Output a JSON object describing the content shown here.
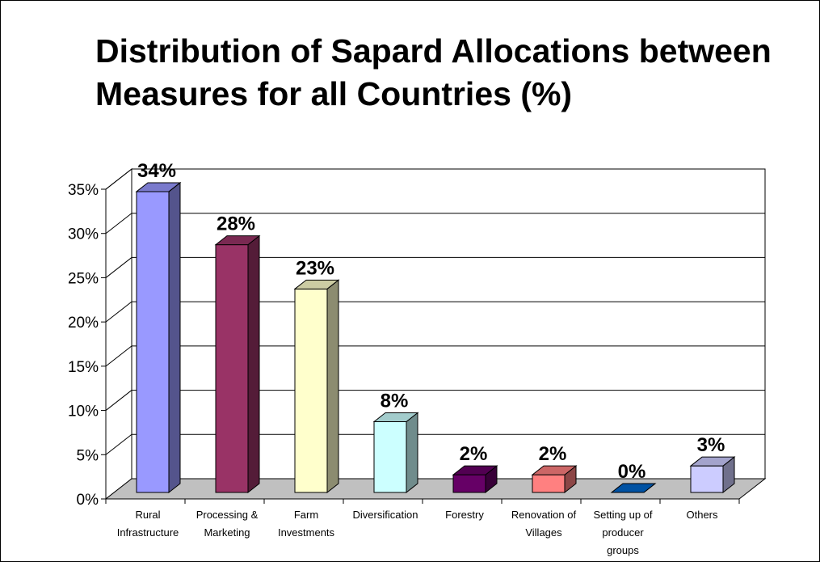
{
  "chart_data": {
    "type": "bar",
    "title": "Distribution of Sapard Allocations between Measures for all Countries (%)",
    "xlabel": "",
    "ylabel": "",
    "ylim": [
      0,
      35
    ],
    "y_ticks": [
      "0%",
      "5%",
      "10%",
      "15%",
      "20%",
      "25%",
      "30%",
      "35%"
    ],
    "grid": true,
    "legend": "none",
    "categories": [
      [
        "Rural",
        "Infrastructure"
      ],
      [
        "Processing &",
        "Marketing"
      ],
      [
        "Farm",
        "Investments"
      ],
      [
        "Diversification"
      ],
      [
        "Forestry"
      ],
      [
        "Renovation of",
        "Villages"
      ],
      [
        "Setting up of",
        "producer",
        "groups"
      ],
      [
        "Others"
      ]
    ],
    "values": [
      34,
      28,
      23,
      8,
      2,
      2,
      0,
      3
    ],
    "data_labels": [
      "34%",
      "28%",
      "23%",
      "8%",
      "2%",
      "2%",
      "0%",
      "3%"
    ],
    "colors": [
      "#9999ff",
      "#993366",
      "#ffffcc",
      "#ccffff",
      "#660066",
      "#ff8080",
      "#0066cc",
      "#ccccff"
    ]
  }
}
